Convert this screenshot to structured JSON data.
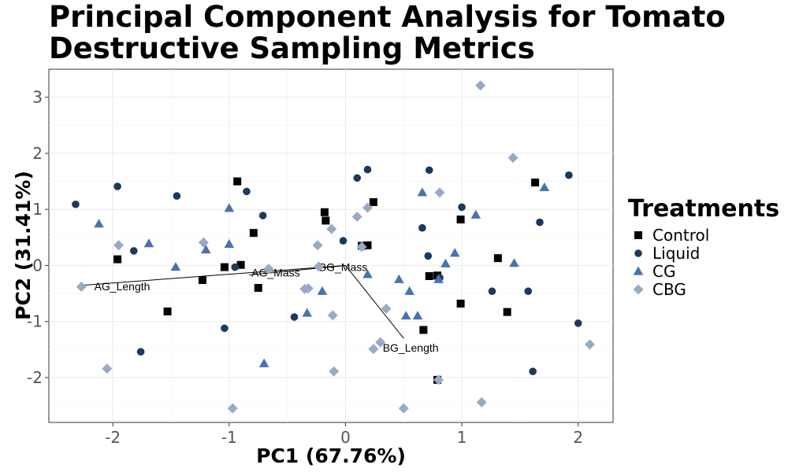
{
  "chart_data": {
    "type": "scatter",
    "title": "Principal Component Analysis for Tomato Destructive Sampling Metrics",
    "xlabel": "PC1 (67.76%)",
    "ylabel": "PC2 (31.41%)",
    "xlim": [
      -2.55,
      2.3
    ],
    "ylim": [
      -2.8,
      3.5
    ],
    "x_ticks": [
      -2,
      -1,
      0,
      1,
      2
    ],
    "y_ticks": [
      -2,
      -1,
      0,
      1,
      2,
      3
    ],
    "grid": true,
    "legend": {
      "title": "Treatments",
      "position": "right"
    },
    "series": [
      {
        "name": "Control",
        "shape": "square",
        "color": "#000000",
        "points": [
          [
            -1.96,
            0.11
          ],
          [
            -1.53,
            -0.82
          ],
          [
            -1.23,
            -0.26
          ],
          [
            -1.04,
            -0.03
          ],
          [
            -0.93,
            1.5
          ],
          [
            -0.9,
            0.01
          ],
          [
            -0.79,
            0.58
          ],
          [
            -0.75,
            -0.4
          ],
          [
            -0.18,
            0.95
          ],
          [
            -0.17,
            0.8
          ],
          [
            0.14,
            0.35
          ],
          [
            0.19,
            0.36
          ],
          [
            0.24,
            1.13
          ],
          [
            0.67,
            -1.15
          ],
          [
            0.72,
            -0.19
          ],
          [
            0.79,
            -0.18
          ],
          [
            0.79,
            -2.04
          ],
          [
            0.99,
            0.82
          ],
          [
            0.99,
            -0.68
          ],
          [
            1.31,
            0.13
          ],
          [
            1.39,
            -0.83
          ],
          [
            1.63,
            1.48
          ]
        ]
      },
      {
        "name": "Liquid",
        "shape": "circle",
        "color": "#1b3a5c",
        "points": [
          [
            -2.32,
            1.09
          ],
          [
            -1.96,
            1.41
          ],
          [
            -1.82,
            0.26
          ],
          [
            -1.76,
            -1.54
          ],
          [
            -1.45,
            1.24
          ],
          [
            -1.04,
            -1.12
          ],
          [
            -0.95,
            -0.03
          ],
          [
            -0.85,
            1.32
          ],
          [
            -0.71,
            0.89
          ],
          [
            -0.44,
            -0.92
          ],
          [
            -0.02,
            0.44
          ],
          [
            0.1,
            1.56
          ],
          [
            0.19,
            1.71
          ],
          [
            0.66,
            0.67
          ],
          [
            0.71,
            0.17
          ],
          [
            0.72,
            1.7
          ],
          [
            0.81,
            -0.22
          ],
          [
            1.0,
            1.04
          ],
          [
            1.26,
            -0.46
          ],
          [
            1.57,
            -0.46
          ],
          [
            1.61,
            -1.89
          ],
          [
            1.67,
            0.77
          ],
          [
            1.92,
            1.61
          ],
          [
            2.0,
            -1.03
          ]
        ]
      },
      {
        "name": "CG",
        "shape": "triangle",
        "color": "#4a72ac",
        "points": [
          [
            -2.12,
            0.74
          ],
          [
            -1.69,
            0.39
          ],
          [
            -1.46,
            -0.03
          ],
          [
            -1.2,
            0.28
          ],
          [
            -1.0,
            1.02
          ],
          [
            -1.0,
            0.38
          ],
          [
            -0.7,
            -1.75
          ],
          [
            -0.33,
            -0.85
          ],
          [
            -0.2,
            -0.46
          ],
          [
            0.19,
            -0.16
          ],
          [
            0.46,
            -0.25
          ],
          [
            0.52,
            -0.9
          ],
          [
            0.55,
            -0.46
          ],
          [
            0.62,
            -0.9
          ],
          [
            0.66,
            1.3
          ],
          [
            0.8,
            -0.25
          ],
          [
            0.86,
            0.03
          ],
          [
            0.94,
            0.22
          ],
          [
            1.12,
            0.9
          ],
          [
            1.45,
            0.04
          ],
          [
            1.71,
            1.39
          ]
        ]
      },
      {
        "name": "CBG",
        "shape": "diamond",
        "color": "#98aac8",
        "points": [
          [
            -2.27,
            -0.38
          ],
          [
            -2.05,
            -1.84
          ],
          [
            -1.95,
            0.36
          ],
          [
            -1.22,
            0.41
          ],
          [
            -0.97,
            -2.55
          ],
          [
            -0.66,
            -0.06
          ],
          [
            -0.35,
            -0.42
          ],
          [
            -0.32,
            -0.41
          ],
          [
            -0.24,
            0.36
          ],
          [
            -0.23,
            -0.02
          ],
          [
            -0.12,
            0.65
          ],
          [
            -0.11,
            -0.89
          ],
          [
            -0.1,
            -1.89
          ],
          [
            0.1,
            0.87
          ],
          [
            0.14,
            0.33
          ],
          [
            0.19,
            1.03
          ],
          [
            0.24,
            -1.49
          ],
          [
            0.3,
            -1.37
          ],
          [
            0.35,
            -0.77
          ],
          [
            0.5,
            -2.55
          ],
          [
            0.8,
            -2.04
          ],
          [
            0.81,
            1.3
          ],
          [
            1.16,
            3.21
          ],
          [
            1.17,
            -2.44
          ],
          [
            1.44,
            1.92
          ],
          [
            2.1,
            -1.41
          ]
        ]
      }
    ],
    "loadings": [
      {
        "name": "AG_Length",
        "end": [
          -2.3,
          -0.36
        ],
        "label": [
          -1.92,
          -0.37
        ]
      },
      {
        "name": "AG_Mass",
        "end": [
          -0.83,
          -0.17
        ],
        "label": [
          -0.6,
          -0.13
        ]
      },
      {
        "name": "BG_Mass",
        "end": [
          -0.23,
          -0.04
        ],
        "label": [
          -0.02,
          -0.03
        ]
      },
      {
        "name": "BG_Length",
        "end": [
          0.5,
          -1.3
        ],
        "label": [
          0.56,
          -1.47
        ]
      }
    ]
  }
}
